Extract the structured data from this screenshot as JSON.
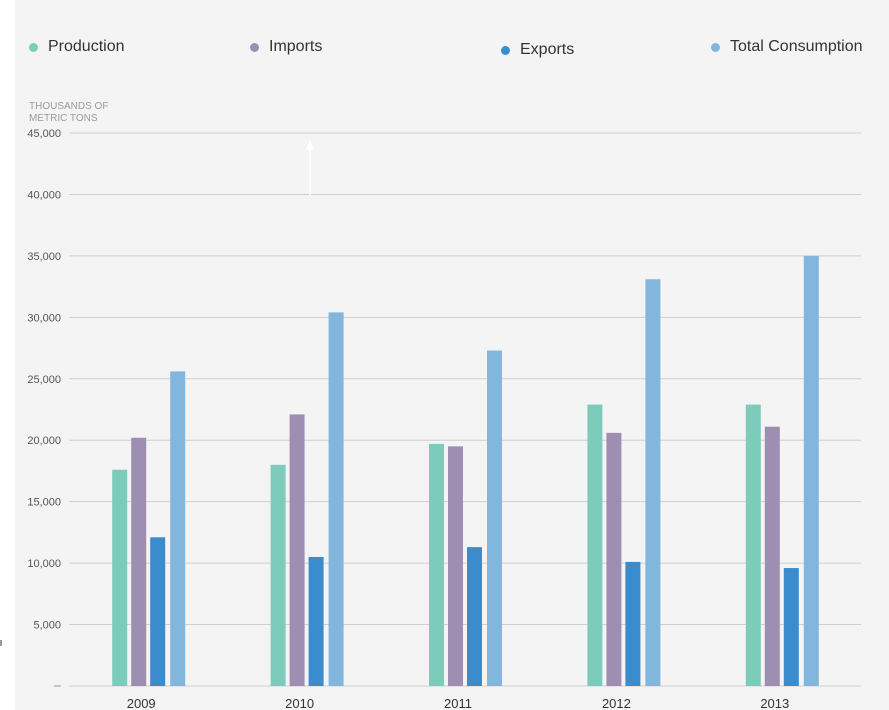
{
  "chart_data": {
    "type": "bar",
    "ylabel": "THOUSANDS OF METRIC TONS",
    "categories": [
      "2009",
      "2010",
      "2011",
      "2012",
      "2013"
    ],
    "series": [
      {
        "name": "Production",
        "color": "#7dcbbb",
        "values": [
          17600,
          18000,
          19700,
          22900,
          22900
        ]
      },
      {
        "name": "Imports",
        "color": "#9e8fb2",
        "values": [
          20200,
          22100,
          19500,
          20600,
          21100
        ]
      },
      {
        "name": "Exports",
        "color": "#3a8ccc",
        "values": [
          12100,
          10500,
          11300,
          10100,
          9600
        ]
      },
      {
        "name": "Total Consumption",
        "color": "#82b6dc",
        "values": [
          25600,
          30400,
          27300,
          33100,
          35000
        ]
      }
    ],
    "ylim": [
      0,
      45000
    ],
    "yticks": [
      {
        "value": 0,
        "label": ""
      },
      {
        "value": 5000,
        "label": "5,000"
      },
      {
        "value": 10000,
        "label": "10,000"
      },
      {
        "value": 15000,
        "label": "15,000"
      },
      {
        "value": 20000,
        "label": "20,000"
      },
      {
        "value": 25000,
        "label": "25,000"
      },
      {
        "value": 30000,
        "label": "30,000"
      },
      {
        "value": 35000,
        "label": "35,000"
      },
      {
        "value": 40000,
        "label": "40,000"
      },
      {
        "value": 45000,
        "label": "45,000"
      }
    ],
    "grid": true,
    "legend": "top"
  }
}
